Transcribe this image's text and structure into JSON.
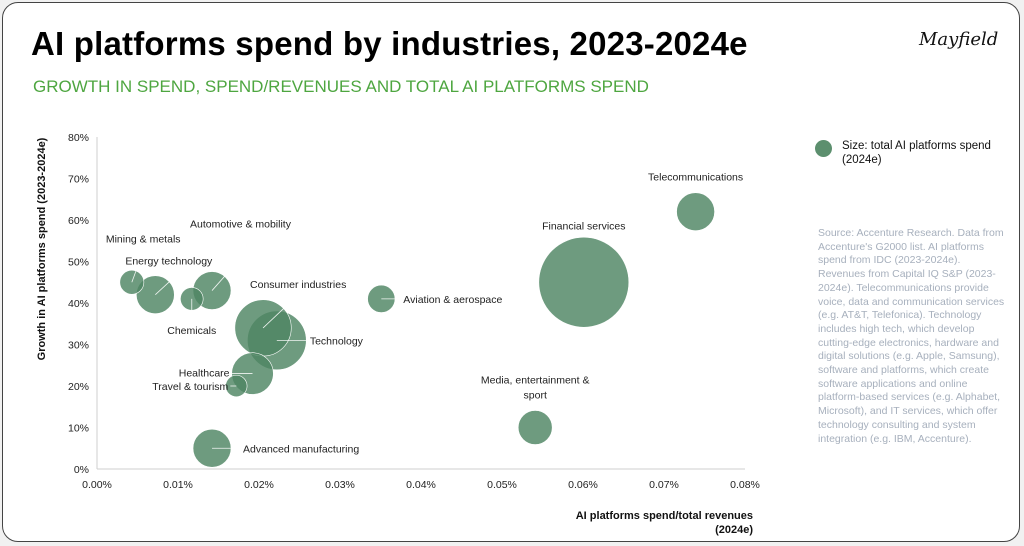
{
  "header": {
    "title": "AI platforms spend by industries, 2023-2024e",
    "subtitle": "GROWTH IN SPEND, SPEND/REVENUES AND TOTAL AI PLATFORMS SPEND",
    "logo": "Mayfield"
  },
  "legend": {
    "label": "Size: total AI platforms spend (2024e)",
    "color": "#5c8f6e"
  },
  "source_note": "Source: Accenture Research. Data from Accenture's G2000 list. AI platforms spend from IDC (2023-2024e). Revenues from Capital IQ S&P (2023-2024e). Telecommunications provide voice, data and communication services (e.g. AT&T, Telefonica). Technology includes high tech, which develop cutting-edge electronics, hardware and digital solutions (e.g. Apple, Samsung), software and platforms, which create software applications and online platform-based services (e.g. Alphabet, Microsoft), and IT services, which offer technology consulting and system integration (e.g. IBM, Accenture).",
  "colors": {
    "bubble": "#4e8563",
    "title_green": "#4ea640",
    "source_gray": "#a7b0bd"
  },
  "chart_data": {
    "type": "scatter",
    "title": "AI platforms spend by industries, 2023-2024e",
    "subtitle": "GROWTH IN SPEND, SPEND/REVENUES AND TOTAL AI PLATFORMS SPEND",
    "xlabel": "AI platforms spend/total revenues (2024e)",
    "ylabel": "Growth in AI platforms spend (2023-2024e)",
    "xlim": [
      0,
      0.08
    ],
    "ylim": [
      0,
      80
    ],
    "x_ticks": [
      "0.00%",
      "0.01%",
      "0.02%",
      "0.03%",
      "0.04%",
      "0.05%",
      "0.06%",
      "0.07%",
      "0.08%"
    ],
    "y_ticks": [
      "0%",
      "10%",
      "20%",
      "30%",
      "40%",
      "50%",
      "60%",
      "70%",
      "80%"
    ],
    "grid": false,
    "legend_position": "top-right",
    "points": [
      {
        "label": "Mining & metals",
        "x": 0.0043,
        "y": 45,
        "size": 1.0
      },
      {
        "label": "Energy technology",
        "x": 0.0072,
        "y": 42,
        "size": 2.5
      },
      {
        "label": "Chemicals",
        "x": 0.0117,
        "y": 41,
        "size": 0.9
      },
      {
        "label": "Automotive & mobility",
        "x": 0.0142,
        "y": 43,
        "size": 2.5
      },
      {
        "label": "Consumer industries",
        "x": 0.0205,
        "y": 34,
        "size": 5.5
      },
      {
        "label": "Technology",
        "x": 0.0222,
        "y": 31,
        "size": 6.0
      },
      {
        "label": "Healthcare",
        "x": 0.0192,
        "y": 23,
        "size": 3.0
      },
      {
        "label": "Travel & tourism",
        "x": 0.0172,
        "y": 20,
        "size": 0.8
      },
      {
        "label": "Advanced manufacturing",
        "x": 0.0142,
        "y": 5,
        "size": 2.5
      },
      {
        "label": "Aviation & aerospace",
        "x": 0.0351,
        "y": 41,
        "size": 1.3
      },
      {
        "label": "Financial services",
        "x": 0.0601,
        "y": 45,
        "size": 14.0
      },
      {
        "label": "Telecommunications",
        "x": 0.0739,
        "y": 62,
        "size": 2.5
      },
      {
        "label": "Media, entertainment & sport",
        "x": 0.0541,
        "y": 10,
        "size": 2.0
      }
    ]
  }
}
